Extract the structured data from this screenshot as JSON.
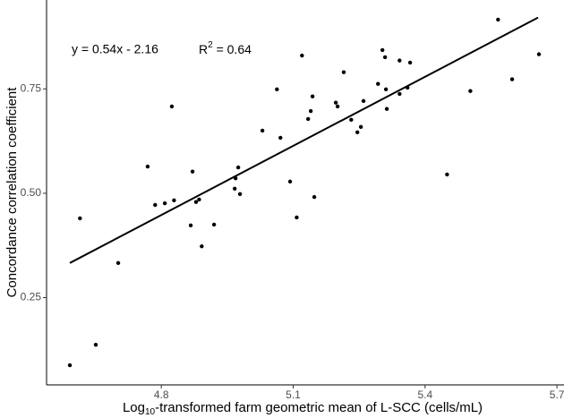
{
  "chart_data": {
    "type": "scatter",
    "xlabel": {
      "prefix": "Log",
      "sub": "10",
      "rest": "-transformed farm geometric mean of L-SCC (cells/mL)"
    },
    "ylabel": "Concordance correlation coefficient",
    "annotations": [
      "y = 0.54x - 2.16"
    ],
    "r2_annotation": {
      "base": "R",
      "sup": "2",
      "rest": " = 0.64"
    },
    "xlim": [
      4.539,
      5.716
    ],
    "ylim": [
      0.041,
      0.963
    ],
    "xticks": [
      4.8,
      5.1,
      5.4,
      5.7
    ],
    "yticks": [
      0.25,
      0.5,
      0.75
    ],
    "ytick_labels": [
      "0.25",
      "0.50",
      "0.75"
    ],
    "series": [
      {
        "color": "#000000",
        "x": [
          4.592,
          4.615,
          4.651,
          4.702,
          4.769,
          4.786,
          4.808,
          4.824,
          4.829,
          4.867,
          4.871,
          4.879,
          4.886,
          4.892,
          4.92,
          4.967,
          4.969,
          4.975,
          4.979,
          5.03,
          5.063,
          5.071,
          5.093,
          5.108,
          5.12,
          5.134,
          5.14,
          5.144,
          5.148,
          5.197,
          5.201,
          5.215,
          5.232,
          5.246,
          5.254,
          5.26,
          5.293,
          5.303,
          5.309,
          5.311,
          5.313,
          5.342,
          5.342,
          5.36,
          5.366,
          5.45,
          5.503,
          5.566,
          5.598,
          5.659
        ],
        "values": [
          0.088,
          0.44,
          0.137,
          0.333,
          0.564,
          0.472,
          0.476,
          0.708,
          0.483,
          0.423,
          0.552,
          0.479,
          0.485,
          0.373,
          0.425,
          0.511,
          0.536,
          0.562,
          0.498,
          0.65,
          0.749,
          0.633,
          0.528,
          0.442,
          0.83,
          0.678,
          0.697,
          0.732,
          0.491,
          0.717,
          0.708,
          0.79,
          0.676,
          0.646,
          0.659,
          0.721,
          0.762,
          0.843,
          0.826,
          0.749,
          0.702,
          0.818,
          0.738,
          0.753,
          0.813,
          0.545,
          0.745,
          0.916,
          0.773,
          0.833
        ]
      },
      {
        "type": "line",
        "color": "#000000",
        "x": [
          4.592,
          5.657
        ],
        "values": [
          0.333,
          0.921
        ]
      }
    ]
  }
}
